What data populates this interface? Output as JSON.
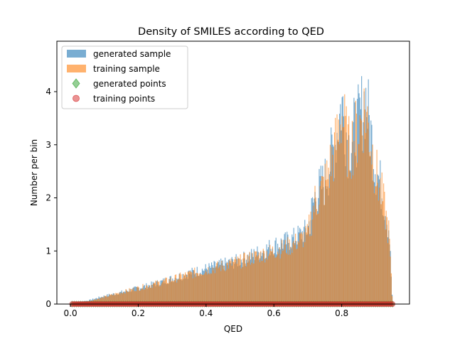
{
  "chart_data": {
    "type": "bar",
    "title": "Density of SMILES according to QED",
    "xlabel": "QED",
    "ylabel": "Number per bin",
    "xlim": [
      -0.04,
      1.0
    ],
    "ylim": [
      0,
      4.95
    ],
    "xticks": [
      0.0,
      0.2,
      0.4,
      0.6,
      0.8
    ],
    "xtick_labels": [
      "0.0",
      "0.2",
      "0.4",
      "0.6",
      "0.8"
    ],
    "yticks": [
      0,
      1,
      2,
      3,
      4
    ],
    "ytick_labels": [
      "0",
      "1",
      "2",
      "3",
      "4"
    ],
    "bin_range": [
      0.0,
      0.95
    ],
    "legend_position": "upper-left",
    "series": [
      {
        "name": "generated sample",
        "kind": "histogram",
        "color": "#1f77b4",
        "alpha": 0.6,
        "profile_x": [
          0.0,
          0.05,
          0.1,
          0.15,
          0.2,
          0.25,
          0.3,
          0.35,
          0.4,
          0.45,
          0.5,
          0.55,
          0.6,
          0.65,
          0.7,
          0.72,
          0.75,
          0.78,
          0.8,
          0.82,
          0.85,
          0.87,
          0.9,
          0.92,
          0.94,
          0.95
        ],
        "profile_y": [
          0.02,
          0.06,
          0.15,
          0.22,
          0.3,
          0.38,
          0.48,
          0.58,
          0.66,
          0.74,
          0.82,
          0.95,
          1.1,
          1.2,
          1.4,
          2.0,
          2.3,
          3.0,
          3.8,
          3.0,
          3.4,
          3.9,
          2.6,
          2.1,
          1.4,
          0.0
        ]
      },
      {
        "name": "training sample",
        "kind": "histogram",
        "color": "#ff7f0e",
        "alpha": 0.6,
        "profile_x": [
          0.0,
          0.05,
          0.1,
          0.15,
          0.2,
          0.25,
          0.3,
          0.35,
          0.4,
          0.45,
          0.5,
          0.55,
          0.6,
          0.65,
          0.7,
          0.72,
          0.75,
          0.78,
          0.8,
          0.82,
          0.85,
          0.87,
          0.9,
          0.92,
          0.94,
          0.95
        ],
        "profile_y": [
          0.01,
          0.05,
          0.13,
          0.22,
          0.3,
          0.38,
          0.46,
          0.56,
          0.64,
          0.72,
          0.8,
          0.9,
          1.0,
          1.1,
          1.3,
          1.9,
          2.25,
          2.9,
          3.6,
          2.9,
          3.3,
          3.7,
          2.5,
          2.0,
          1.3,
          0.0
        ]
      },
      {
        "name": "generated points",
        "kind": "scatter",
        "marker": "diamond",
        "color": "#2ca02c",
        "y": 0,
        "x_range": [
          0.005,
          0.95
        ]
      },
      {
        "name": "training points",
        "kind": "scatter",
        "marker": "circle",
        "color": "#d62728",
        "y": 0,
        "x_range": [
          0.005,
          0.95
        ]
      }
    ]
  }
}
